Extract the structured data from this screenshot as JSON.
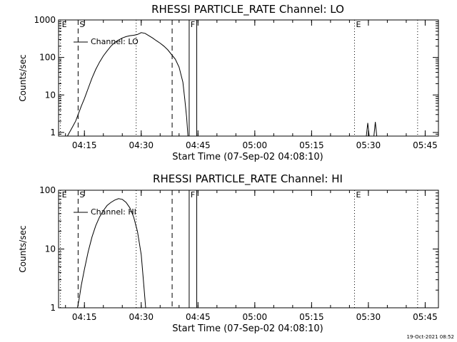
{
  "footer": {
    "timestamp": "19-Oct-2021 08:52"
  },
  "chart_data": [
    {
      "type": "line",
      "title": "RHESSI PARTICLE_RATE Channel: LO",
      "xlabel": "Start Time (07-Sep-02 04:08:10)",
      "ylabel": "Counts/sec",
      "x_ticks": [
        "04:15",
        "04:30",
        "04:45",
        "05:00",
        "05:15",
        "05:30",
        "05:45"
      ],
      "y_scale": "log",
      "y_ticks": [
        "1",
        "10",
        "100",
        "1000"
      ],
      "ylim": [
        0.8,
        1000
      ],
      "legend": {
        "label": "Channel: LO",
        "placement": "top-left"
      },
      "markers": [
        {
          "time": "04:08:40",
          "label": "E",
          "style": "dotted"
        },
        {
          "time": "04:13:20",
          "label": "S",
          "style": "dashed"
        },
        {
          "time": "04:28:40",
          "label": "",
          "style": "dotted"
        },
        {
          "time": "04:38:10",
          "label": "",
          "style": "dashed"
        },
        {
          "time": "04:42:40",
          "label": "F",
          "style": "solid"
        },
        {
          "time": "04:44:40",
          "label": "",
          "style": "solid"
        },
        {
          "time": "05:26:20",
          "label": "E",
          "style": "dotted"
        },
        {
          "time": "05:43:00",
          "label": "",
          "style": "dotted"
        }
      ],
      "series": [
        {
          "name": "Channel: LO",
          "points": [
            [
              "04:10:30",
              0.8
            ],
            [
              "04:11:40",
              1.3
            ],
            [
              "04:12:40",
              2.0
            ],
            [
              "04:13:20",
              3.0
            ],
            [
              "04:14:10",
              5
            ],
            [
              "04:15:00",
              8
            ],
            [
              "04:16:00",
              15
            ],
            [
              "04:17:00",
              28
            ],
            [
              "04:18:00",
              48
            ],
            [
              "04:19:00",
              75
            ],
            [
              "04:20:00",
              110
            ],
            [
              "04:21:00",
              150
            ],
            [
              "04:22:00",
              200
            ],
            [
              "04:23:00",
              250
            ],
            [
              "04:24:00",
              290
            ],
            [
              "04:25:00",
              330
            ],
            [
              "04:26:00",
              360
            ],
            [
              "04:27:00",
              380
            ],
            [
              "04:28:00",
              390
            ],
            [
              "04:29:00",
              410
            ],
            [
              "04:30:00",
              460
            ],
            [
              "04:31:00",
              440
            ],
            [
              "04:32:00",
              380
            ],
            [
              "04:33:00",
              330
            ],
            [
              "04:34:00",
              280
            ],
            [
              "04:35:00",
              240
            ],
            [
              "04:36:00",
              200
            ],
            [
              "04:37:00",
              160
            ],
            [
              "04:38:00",
              120
            ],
            [
              "04:39:00",
              90
            ],
            [
              "04:40:00",
              55
            ],
            [
              "04:41:00",
              22
            ],
            [
              "04:41:30",
              8
            ],
            [
              "04:42:00",
              2.5
            ],
            [
              "04:42:20",
              0.8
            ]
          ],
          "spikes": [
            [
              "05:29:50",
              1.8
            ],
            [
              "05:31:50",
              1.9
            ]
          ]
        }
      ]
    },
    {
      "type": "line",
      "title": "RHESSI PARTICLE_RATE Channel: HI",
      "xlabel": "Start Time (07-Sep-02 04:08:10)",
      "ylabel": "Counts/sec",
      "x_ticks": [
        "04:15",
        "04:30",
        "04:45",
        "05:00",
        "05:15",
        "05:30",
        "05:45"
      ],
      "y_scale": "log",
      "y_ticks": [
        "1",
        "10",
        "100"
      ],
      "ylim": [
        1,
        100
      ],
      "legend": {
        "label": "Channel: HI",
        "placement": "top-left"
      },
      "markers": [
        {
          "time": "04:08:40",
          "label": "E",
          "style": "dotted"
        },
        {
          "time": "04:13:20",
          "label": "S",
          "style": "dashed"
        },
        {
          "time": "04:28:40",
          "label": "",
          "style": "dotted"
        },
        {
          "time": "04:38:10",
          "label": "",
          "style": "dashed"
        },
        {
          "time": "04:42:40",
          "label": "F",
          "style": "solid"
        },
        {
          "time": "04:44:40",
          "label": "",
          "style": "solid"
        },
        {
          "time": "05:26:20",
          "label": "E",
          "style": "dotted"
        },
        {
          "time": "05:43:00",
          "label": "",
          "style": "dotted"
        }
      ],
      "series": [
        {
          "name": "Channel: HI",
          "points": [
            [
              "04:13:10",
              1.0
            ],
            [
              "04:13:40",
              1.5
            ],
            [
              "04:14:10",
              2.4
            ],
            [
              "04:15:00",
              4.5
            ],
            [
              "04:16:00",
              9
            ],
            [
              "04:17:00",
              16
            ],
            [
              "04:18:00",
              25
            ],
            [
              "04:19:00",
              35
            ],
            [
              "04:20:00",
              45
            ],
            [
              "04:21:00",
              55
            ],
            [
              "04:22:00",
              62
            ],
            [
              "04:23:00",
              68
            ],
            [
              "04:24:00",
              72
            ],
            [
              "04:25:00",
              70
            ],
            [
              "04:26:00",
              62
            ],
            [
              "04:27:00",
              50
            ],
            [
              "04:28:00",
              35
            ],
            [
              "04:29:00",
              20
            ],
            [
              "04:30:00",
              8
            ],
            [
              "04:30:40",
              2.5
            ],
            [
              "04:31:10",
              1.0
            ]
          ]
        }
      ]
    }
  ]
}
